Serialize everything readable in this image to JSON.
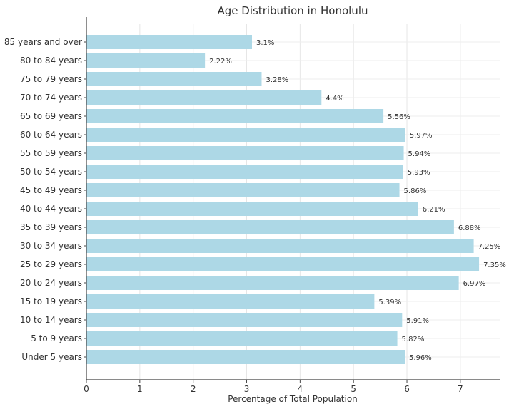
{
  "chart_data": {
    "type": "bar",
    "orientation": "horizontal",
    "title": "Age Distribution in Honolulu",
    "xlabel": "Percentage of Total Population",
    "ylabel": "",
    "xlim": [
      0,
      7.75
    ],
    "xticks": [
      0,
      1,
      2,
      3,
      4,
      5,
      6,
      7
    ],
    "grid": true,
    "bar_color": "#add8e6",
    "categories": [
      "85 years and over",
      "80 to 84 years",
      "75 to 79 years",
      "70 to 74 years",
      "65 to 69 years",
      "60 to 64 years",
      "55 to 59 years",
      "50 to 54 years",
      "45 to 49 years",
      "40 to 44 years",
      "35 to 39 years",
      "30 to 34 years",
      "25 to 29 years",
      "20 to 24 years",
      "15 to 19 years",
      "10 to 14 years",
      "5 to 9 years",
      "Under 5 years"
    ],
    "values": [
      3.1,
      2.22,
      3.28,
      4.4,
      5.56,
      5.97,
      5.94,
      5.93,
      5.86,
      6.21,
      6.88,
      7.25,
      7.35,
      6.97,
      5.39,
      5.91,
      5.82,
      5.96
    ],
    "data_labels": [
      "3.1%",
      "2.22%",
      "3.28%",
      "4.4%",
      "5.56%",
      "5.97%",
      "5.94%",
      "5.93%",
      "5.86%",
      "6.21%",
      "6.88%",
      "7.25%",
      "7.35%",
      "6.97%",
      "5.39%",
      "5.91%",
      "5.82%",
      "5.96%"
    ]
  }
}
